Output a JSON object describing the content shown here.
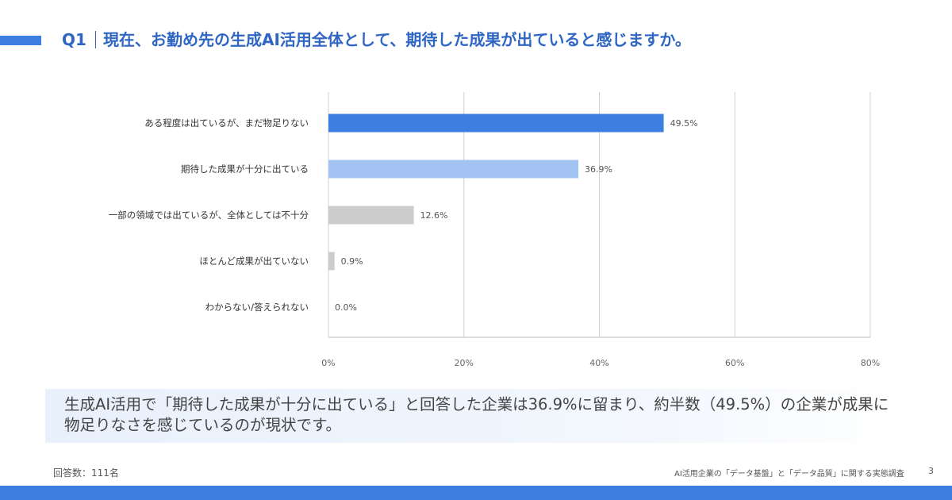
{
  "header": {
    "q_label": "Q1",
    "question": "現在、お勤め先の生成AI活用全体として、期待した成果が出ていると感じますか。"
  },
  "chart_data": {
    "type": "bar",
    "orientation": "horizontal",
    "categories": [
      "ある程度は出ているが、まだ物足りない",
      "期待した成果が十分に出ている",
      "一部の領域では出ているが、全体としては不十分",
      "ほとんど成果が出ていない",
      "わからない/答えられない"
    ],
    "values": [
      49.5,
      36.9,
      12.6,
      0.9,
      0.0
    ],
    "value_labels": [
      "49.5%",
      "36.9%",
      "12.6%",
      "0.9%",
      "0.0%"
    ],
    "bar_colors": [
      "#3d7fe0",
      "#a3c3f2",
      "#cccccc",
      "#cccccc",
      "#cccccc"
    ],
    "xlim": [
      0,
      80
    ],
    "ticks": [
      0,
      20,
      40,
      60,
      80
    ],
    "tick_labels": [
      "0%",
      "20%",
      "40%",
      "60%",
      "80%"
    ],
    "grid": true,
    "title": "",
    "xlabel": "",
    "ylabel": ""
  },
  "summary": "生成AI活用で「期待した成果が十分に出ている」と回答した企業は36.9%に留まり、約半数（49.5%）の企業が成果に物足りなさを感じているのが現状です。",
  "footer": {
    "respondents": "回答数：111名",
    "survey_title": "AI活用企業の「データ基盤」と「データ品質」に関する実態調査",
    "page_number": "3"
  },
  "colors": {
    "accent": "#3d7fe0",
    "title": "#2f66c4"
  }
}
